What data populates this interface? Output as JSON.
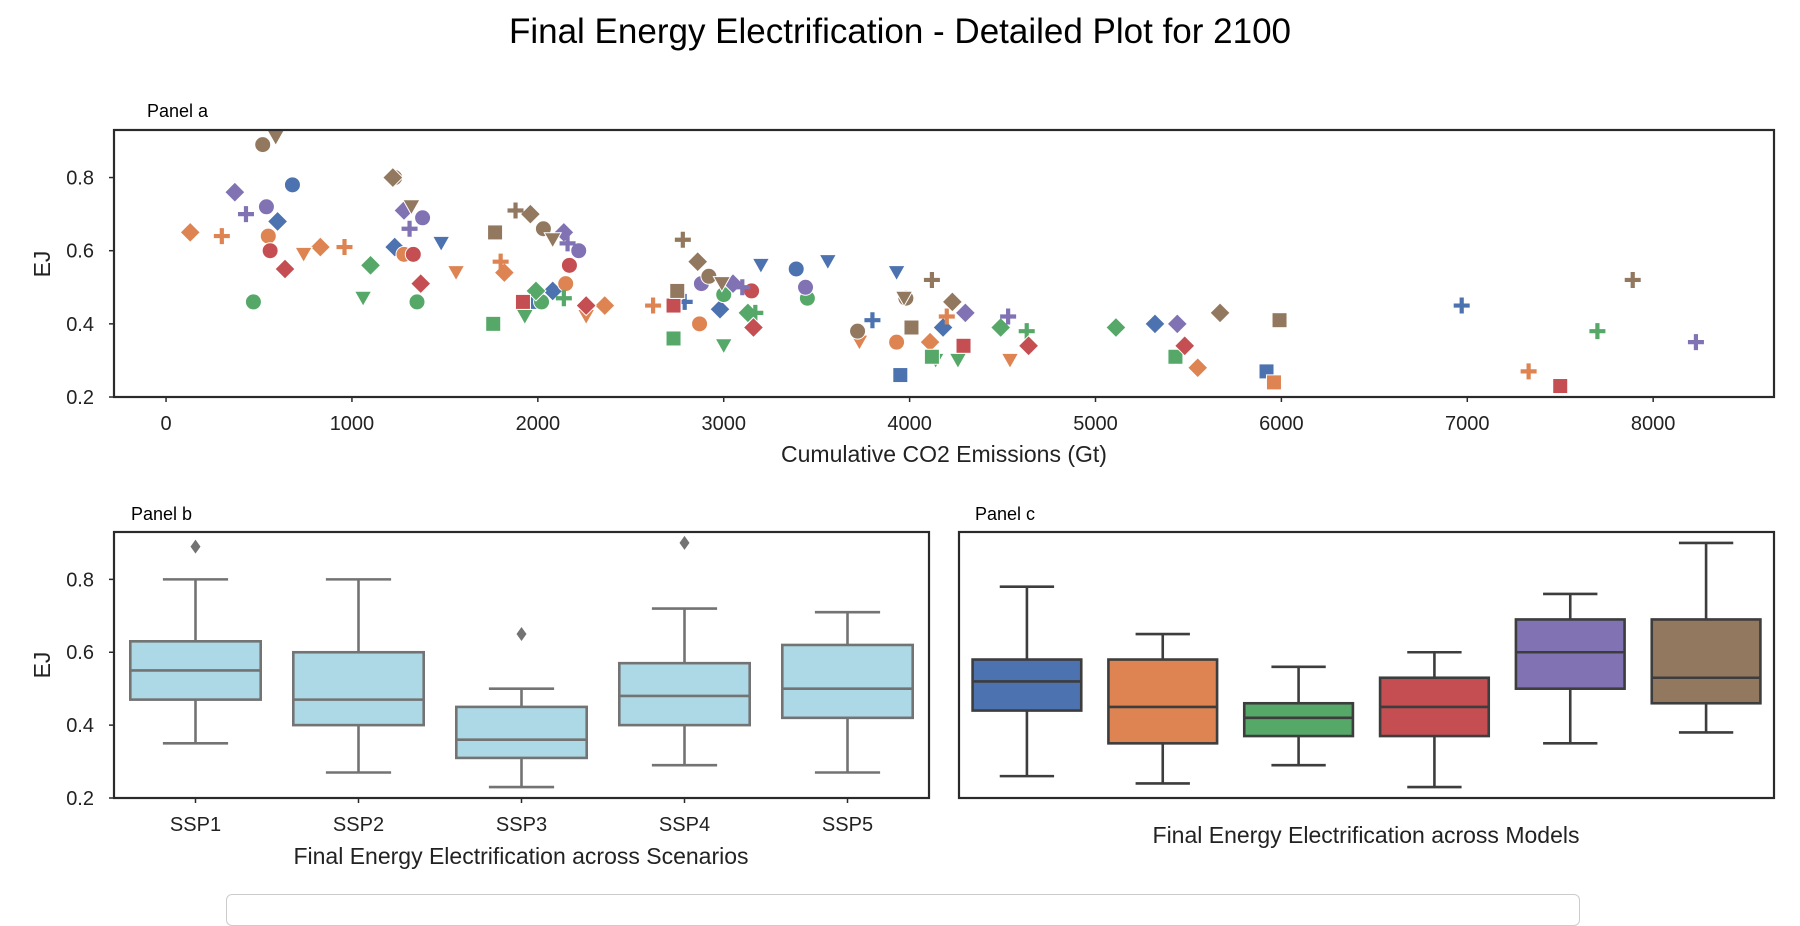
{
  "figure_title": "Final Energy Electrification - Detailed Plot for 2100",
  "colors": {
    "m1": "#4c72b0",
    "m2": "#dd8452",
    "m3": "#55a868",
    "m4": "#c44e52",
    "m5": "#8172b3",
    "m6": "#937860",
    "box_b_fill": "#add8e6",
    "box_b_line": "#737373",
    "box_c_line": "#3d3d3d"
  },
  "chart_data": [
    {
      "type": "scatter",
      "panel_label": "Panel a",
      "xlabel": "Cumulative CO2 Emissions (Gt)",
      "ylabel": "EJ",
      "xlim": [
        -280,
        8650
      ],
      "ylim": [
        0.2,
        0.93
      ],
      "x_ticks": [
        0,
        1000,
        2000,
        3000,
        4000,
        5000,
        6000,
        7000,
        8000
      ],
      "y_ticks": [
        0.2,
        0.4,
        0.6,
        0.8
      ],
      "grid": false,
      "marker_by_scenario": {
        "SSP1": "circle",
        "SSP2": "cross",
        "SSP3": "square",
        "SSP4": "triangle-down",
        "SSP5": "diamond"
      },
      "series": [
        {
          "color_key": "m1",
          "points": [
            {
              "x": 680,
              "y": 0.78,
              "m": "circle"
            },
            {
              "x": 3390,
              "y": 0.55,
              "m": "circle"
            },
            {
              "x": 1230,
              "y": 0.61,
              "m": "diamond"
            },
            {
              "x": 600,
              "y": 0.68,
              "m": "diamond"
            },
            {
              "x": 2080,
              "y": 0.49,
              "m": "diamond"
            },
            {
              "x": 2980,
              "y": 0.44,
              "m": "diamond"
            },
            {
              "x": 5320,
              "y": 0.4,
              "m": "diamond"
            },
            {
              "x": 1480,
              "y": 0.62,
              "m": "triangle-down"
            },
            {
              "x": 3560,
              "y": 0.57,
              "m": "triangle-down"
            },
            {
              "x": 3200,
              "y": 0.56,
              "m": "triangle-down"
            },
            {
              "x": 3930,
              "y": 0.54,
              "m": "triangle-down"
            },
            {
              "x": 2790,
              "y": 0.46,
              "m": "cross"
            },
            {
              "x": 3800,
              "y": 0.41,
              "m": "cross"
            },
            {
              "x": 6970,
              "y": 0.45,
              "m": "cross"
            },
            {
              "x": 2000,
              "y": 0.46,
              "m": "square"
            },
            {
              "x": 3950,
              "y": 0.26,
              "m": "square"
            },
            {
              "x": 5920,
              "y": 0.27,
              "m": "square"
            },
            {
              "x": 4180,
              "y": 0.39,
              "m": "diamond"
            }
          ]
        },
        {
          "color_key": "m2",
          "points": [
            {
              "x": 550,
              "y": 0.64,
              "m": "circle"
            },
            {
              "x": 1280,
              "y": 0.59,
              "m": "circle"
            },
            {
              "x": 2150,
              "y": 0.51,
              "m": "circle"
            },
            {
              "x": 2870,
              "y": 0.4,
              "m": "circle"
            },
            {
              "x": 3930,
              "y": 0.35,
              "m": "circle"
            },
            {
              "x": 130,
              "y": 0.65,
              "m": "diamond"
            },
            {
              "x": 830,
              "y": 0.61,
              "m": "diamond"
            },
            {
              "x": 1820,
              "y": 0.54,
              "m": "diamond"
            },
            {
              "x": 2360,
              "y": 0.45,
              "m": "diamond"
            },
            {
              "x": 4110,
              "y": 0.35,
              "m": "diamond"
            },
            {
              "x": 5550,
              "y": 0.28,
              "m": "diamond"
            },
            {
              "x": 300,
              "y": 0.64,
              "m": "cross"
            },
            {
              "x": 960,
              "y": 0.61,
              "m": "cross"
            },
            {
              "x": 1800,
              "y": 0.57,
              "m": "cross"
            },
            {
              "x": 2620,
              "y": 0.45,
              "m": "cross"
            },
            {
              "x": 7330,
              "y": 0.27,
              "m": "cross"
            },
            {
              "x": 740,
              "y": 0.59,
              "m": "triangle-down"
            },
            {
              "x": 1560,
              "y": 0.54,
              "m": "triangle-down"
            },
            {
              "x": 2260,
              "y": 0.42,
              "m": "triangle-down"
            },
            {
              "x": 3730,
              "y": 0.35,
              "m": "triangle-down"
            },
            {
              "x": 4540,
              "y": 0.3,
              "m": "triangle-down"
            },
            {
              "x": 5960,
              "y": 0.24,
              "m": "square"
            },
            {
              "x": 4200,
              "y": 0.42,
              "m": "cross"
            }
          ]
        },
        {
          "color_key": "m3",
          "points": [
            {
              "x": 470,
              "y": 0.46,
              "m": "circle"
            },
            {
              "x": 1350,
              "y": 0.46,
              "m": "circle"
            },
            {
              "x": 2020,
              "y": 0.46,
              "m": "circle"
            },
            {
              "x": 3000,
              "y": 0.48,
              "m": "circle"
            },
            {
              "x": 3450,
              "y": 0.47,
              "m": "circle"
            },
            {
              "x": 1100,
              "y": 0.56,
              "m": "diamond"
            },
            {
              "x": 1990,
              "y": 0.49,
              "m": "diamond"
            },
            {
              "x": 3130,
              "y": 0.43,
              "m": "diamond"
            },
            {
              "x": 4490,
              "y": 0.39,
              "m": "diamond"
            },
            {
              "x": 5110,
              "y": 0.39,
              "m": "diamond"
            },
            {
              "x": 1060,
              "y": 0.47,
              "m": "triangle-down"
            },
            {
              "x": 1930,
              "y": 0.42,
              "m": "triangle-down"
            },
            {
              "x": 3000,
              "y": 0.34,
              "m": "triangle-down"
            },
            {
              "x": 4140,
              "y": 0.3,
              "m": "triangle-down"
            },
            {
              "x": 4260,
              "y": 0.3,
              "m": "triangle-down"
            },
            {
              "x": 2140,
              "y": 0.47,
              "m": "cross"
            },
            {
              "x": 3170,
              "y": 0.43,
              "m": "cross"
            },
            {
              "x": 4630,
              "y": 0.38,
              "m": "cross"
            },
            {
              "x": 7700,
              "y": 0.38,
              "m": "cross"
            },
            {
              "x": 1760,
              "y": 0.4,
              "m": "square"
            },
            {
              "x": 2730,
              "y": 0.36,
              "m": "square"
            },
            {
              "x": 5430,
              "y": 0.31,
              "m": "square"
            },
            {
              "x": 4120,
              "y": 0.31,
              "m": "square"
            }
          ]
        },
        {
          "color_key": "m4",
          "points": [
            {
              "x": 560,
              "y": 0.6,
              "m": "circle"
            },
            {
              "x": 1330,
              "y": 0.59,
              "m": "circle"
            },
            {
              "x": 2170,
              "y": 0.56,
              "m": "circle"
            },
            {
              "x": 3150,
              "y": 0.49,
              "m": "circle"
            },
            {
              "x": 640,
              "y": 0.55,
              "m": "diamond"
            },
            {
              "x": 1370,
              "y": 0.51,
              "m": "diamond"
            },
            {
              "x": 2260,
              "y": 0.45,
              "m": "diamond"
            },
            {
              "x": 3160,
              "y": 0.39,
              "m": "diamond"
            },
            {
              "x": 4640,
              "y": 0.34,
              "m": "diamond"
            },
            {
              "x": 5480,
              "y": 0.34,
              "m": "diamond"
            },
            {
              "x": 1920,
              "y": 0.46,
              "m": "square"
            },
            {
              "x": 2730,
              "y": 0.45,
              "m": "square"
            },
            {
              "x": 4290,
              "y": 0.34,
              "m": "square"
            },
            {
              "x": 7500,
              "y": 0.23,
              "m": "square"
            }
          ]
        },
        {
          "color_key": "m5",
          "points": [
            {
              "x": 540,
              "y": 0.72,
              "m": "circle"
            },
            {
              "x": 1380,
              "y": 0.69,
              "m": "circle"
            },
            {
              "x": 2220,
              "y": 0.6,
              "m": "circle"
            },
            {
              "x": 2880,
              "y": 0.51,
              "m": "circle"
            },
            {
              "x": 3440,
              "y": 0.5,
              "m": "circle"
            },
            {
              "x": 370,
              "y": 0.76,
              "m": "diamond"
            },
            {
              "x": 1280,
              "y": 0.71,
              "m": "diamond"
            },
            {
              "x": 2140,
              "y": 0.65,
              "m": "diamond"
            },
            {
              "x": 3050,
              "y": 0.51,
              "m": "diamond"
            },
            {
              "x": 4300,
              "y": 0.43,
              "m": "diamond"
            },
            {
              "x": 5440,
              "y": 0.4,
              "m": "diamond"
            },
            {
              "x": 430,
              "y": 0.7,
              "m": "cross"
            },
            {
              "x": 1310,
              "y": 0.66,
              "m": "cross"
            },
            {
              "x": 2160,
              "y": 0.62,
              "m": "cross"
            },
            {
              "x": 3100,
              "y": 0.5,
              "m": "cross"
            },
            {
              "x": 4530,
              "y": 0.42,
              "m": "cross"
            },
            {
              "x": 8230,
              "y": 0.35,
              "m": "cross"
            }
          ]
        },
        {
          "color_key": "m6",
          "points": [
            {
              "x": 520,
              "y": 0.89,
              "m": "circle"
            },
            {
              "x": 1230,
              "y": 0.8,
              "m": "circle"
            },
            {
              "x": 2030,
              "y": 0.66,
              "m": "circle"
            },
            {
              "x": 2920,
              "y": 0.53,
              "m": "circle"
            },
            {
              "x": 3980,
              "y": 0.47,
              "m": "circle"
            },
            {
              "x": 3720,
              "y": 0.38,
              "m": "circle"
            },
            {
              "x": 1220,
              "y": 0.8,
              "m": "diamond"
            },
            {
              "x": 1960,
              "y": 0.7,
              "m": "diamond"
            },
            {
              "x": 2860,
              "y": 0.57,
              "m": "diamond"
            },
            {
              "x": 4230,
              "y": 0.46,
              "m": "diamond"
            },
            {
              "x": 5670,
              "y": 0.43,
              "m": "diamond"
            },
            {
              "x": 590,
              "y": 0.91,
              "m": "triangle-down"
            },
            {
              "x": 1320,
              "y": 0.72,
              "m": "triangle-down"
            },
            {
              "x": 2080,
              "y": 0.63,
              "m": "triangle-down"
            },
            {
              "x": 2990,
              "y": 0.51,
              "m": "triangle-down"
            },
            {
              "x": 3970,
              "y": 0.47,
              "m": "triangle-down"
            },
            {
              "x": 1880,
              "y": 0.71,
              "m": "cross"
            },
            {
              "x": 2780,
              "y": 0.63,
              "m": "cross"
            },
            {
              "x": 4120,
              "y": 0.52,
              "m": "cross"
            },
            {
              "x": 7890,
              "y": 0.52,
              "m": "cross"
            },
            {
              "x": 1770,
              "y": 0.65,
              "m": "square"
            },
            {
              "x": 2750,
              "y": 0.49,
              "m": "square"
            },
            {
              "x": 4010,
              "y": 0.39,
              "m": "square"
            },
            {
              "x": 5990,
              "y": 0.41,
              "m": "square"
            }
          ]
        }
      ]
    },
    {
      "type": "box",
      "panel_label": "Panel b",
      "xlabel": "Final Energy Electrification across Scenarios",
      "ylabel": "EJ",
      "ylim": [
        0.2,
        0.93
      ],
      "y_ticks": [
        0.2,
        0.4,
        0.6,
        0.8
      ],
      "categories": [
        "SSP1",
        "SSP2",
        "SSP3",
        "SSP4",
        "SSP5"
      ],
      "boxes": [
        {
          "whislo": 0.35,
          "q1": 0.47,
          "med": 0.55,
          "q3": 0.63,
          "whishi": 0.8,
          "fliers": [
            0.89
          ]
        },
        {
          "whislo": 0.27,
          "q1": 0.4,
          "med": 0.47,
          "q3": 0.6,
          "whishi": 0.8,
          "fliers": []
        },
        {
          "whislo": 0.23,
          "q1": 0.31,
          "med": 0.36,
          "q3": 0.45,
          "whishi": 0.5,
          "fliers": [
            0.65
          ]
        },
        {
          "whislo": 0.29,
          "q1": 0.4,
          "med": 0.48,
          "q3": 0.57,
          "whishi": 0.72,
          "fliers": [
            0.9
          ]
        },
        {
          "whislo": 0.27,
          "q1": 0.42,
          "med": 0.5,
          "q3": 0.62,
          "whishi": 0.71,
          "fliers": []
        }
      ]
    },
    {
      "type": "box",
      "panel_label": "Panel c",
      "xlabel": "Final Energy Electrification across Models",
      "ylim": [
        0.2,
        0.93
      ],
      "boxes": [
        {
          "color_key": "m1",
          "whislo": 0.26,
          "q1": 0.44,
          "med": 0.52,
          "q3": 0.58,
          "whishi": 0.78
        },
        {
          "color_key": "m2",
          "whislo": 0.24,
          "q1": 0.35,
          "med": 0.45,
          "q3": 0.58,
          "whishi": 0.65
        },
        {
          "color_key": "m3",
          "whislo": 0.29,
          "q1": 0.37,
          "med": 0.42,
          "q3": 0.46,
          "whishi": 0.56
        },
        {
          "color_key": "m4",
          "whislo": 0.23,
          "q1": 0.37,
          "med": 0.45,
          "q3": 0.53,
          "whishi": 0.6
        },
        {
          "color_key": "m5",
          "whislo": 0.35,
          "q1": 0.5,
          "med": 0.6,
          "q3": 0.69,
          "whishi": 0.76
        },
        {
          "color_key": "m6",
          "whislo": 0.38,
          "q1": 0.46,
          "med": 0.53,
          "q3": 0.69,
          "whishi": 0.9
        }
      ]
    }
  ]
}
